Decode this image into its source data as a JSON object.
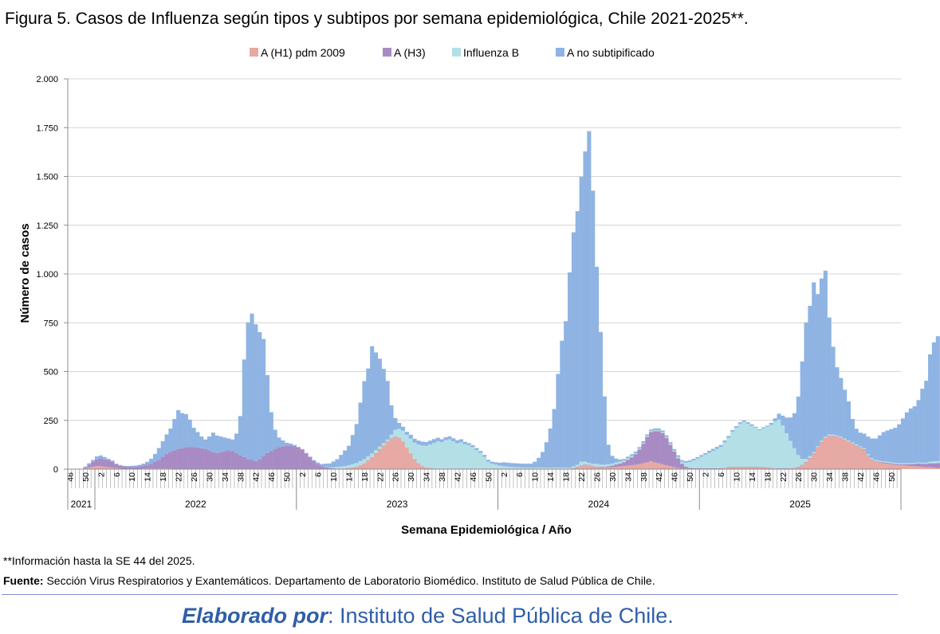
{
  "figure": {
    "title": "Figura 5. Casos de Influenza según tipos y subtipos por semana epidemiológica, Chile 2021-2025**.",
    "note": "**Información hasta la SE 44 del 2025.",
    "source_label": "Fuente:",
    "source_text": " Sección Virus Respiratorios y Exantemáticos. Departamento de Laboratorio Biomédico. Instituto de Salud Pública de Chile.",
    "footer_em": "Elaborado por",
    "footer_rest": ": Instituto de Salud Pública de Chile."
  },
  "chart_data": {
    "type": "bar",
    "stacked": true,
    "ylabel": "Número de casos",
    "xlabel": "Semana Epidemiológica / Año",
    "ylim": [
      0,
      2000
    ],
    "yticks": [
      0,
      250,
      500,
      750,
      1000,
      1250,
      1500,
      1750,
      2000
    ],
    "ytick_labels": [
      "0",
      "250",
      "500",
      "750",
      "1.000",
      "1.250",
      "1.500",
      "1.750",
      "2.000"
    ],
    "grid": true,
    "legend_position": "top",
    "xtick_labels": [
      "46",
      "50",
      "2",
      "6",
      "10",
      "14",
      "18",
      "22",
      "26",
      "30",
      "34",
      "38",
      "42",
      "46",
      "50",
      "2",
      "6",
      "10",
      "14",
      "18",
      "22",
      "26",
      "30",
      "34",
      "38",
      "42",
      "46",
      "50",
      "2",
      "6",
      "10",
      "14",
      "18",
      "22",
      "26",
      "30",
      "34",
      "38",
      "42",
      "46",
      "50",
      "2",
      "6",
      "10",
      "14",
      "18",
      "22",
      "26",
      "30",
      "34",
      "38",
      "42",
      "46",
      "50"
    ],
    "year_groups": [
      {
        "label": "2021",
        "start": "2021-46",
        "end": "2021-52"
      },
      {
        "label": "2022",
        "start": "2022-01",
        "end": "2022-52"
      },
      {
        "label": "2023",
        "start": "2023-01",
        "end": "2023-52"
      },
      {
        "label": "2024",
        "start": "2024-01",
        "end": "2024-52"
      },
      {
        "label": "2025",
        "start": "2025-01",
        "end": "2025-52"
      }
    ],
    "x_start": "2021-46",
    "x_end": "2025-52",
    "last_data_week": "2025-44",
    "series": [
      {
        "name": "A (H1) pdm 2009",
        "color": "#e6a9a3",
        "values": [
          0,
          0,
          0,
          0,
          3,
          8,
          12,
          15,
          15,
          12,
          10,
          8,
          5,
          3,
          2,
          2,
          2,
          2,
          2,
          3,
          3,
          3,
          3,
          3,
          3,
          3,
          3,
          2,
          2,
          2,
          2,
          2,
          2,
          2,
          2,
          2,
          2,
          2,
          2,
          2,
          2,
          2,
          2,
          2,
          2,
          2,
          2,
          2,
          2,
          2,
          2,
          2,
          2,
          2,
          2,
          2,
          2,
          1,
          1,
          1,
          1,
          1,
          1,
          1,
          1,
          1,
          1,
          1,
          1,
          1,
          2,
          3,
          5,
          8,
          12,
          20,
          30,
          45,
          60,
          80,
          100,
          120,
          140,
          155,
          165,
          160,
          140,
          110,
          80,
          50,
          30,
          15,
          8,
          5,
          3,
          2,
          2,
          2,
          2,
          2,
          2,
          2,
          2,
          2,
          2,
          2,
          2,
          2,
          2,
          2,
          2,
          2,
          2,
          2,
          2,
          2,
          2,
          2,
          2,
          2,
          2,
          2,
          2,
          2,
          2,
          2,
          2,
          2,
          2,
          2,
          5,
          10,
          15,
          20,
          20,
          15,
          10,
          10,
          10,
          10,
          10,
          12,
          14,
          16,
          18,
          20,
          22,
          25,
          30,
          35,
          40,
          35,
          30,
          25,
          20,
          15,
          10,
          5,
          3,
          3,
          2,
          2,
          2,
          2,
          2,
          2,
          2,
          2,
          2,
          5,
          8,
          10,
          10,
          10,
          10,
          10,
          10,
          10,
          8,
          8,
          6,
          5,
          3,
          2,
          2,
          2,
          3,
          5,
          10,
          20,
          35,
          55,
          80,
          110,
          140,
          160,
          170,
          170,
          165,
          160,
          150,
          140,
          130,
          120,
          110,
          100,
          70,
          50,
          40,
          35,
          30,
          28,
          25,
          22,
          20,
          20,
          18,
          16,
          15,
          14,
          12,
          10,
          10,
          8,
          6,
          5
        ]
      },
      {
        "name": "A (H3)",
        "color": "#a98bc4",
        "values": [
          0,
          0,
          0,
          0,
          5,
          15,
          25,
          35,
          40,
          38,
          35,
          30,
          20,
          15,
          12,
          10,
          10,
          10,
          12,
          15,
          20,
          25,
          35,
          45,
          60,
          75,
          85,
          95,
          100,
          105,
          110,
          112,
          110,
          108,
          105,
          100,
          95,
          85,
          80,
          85,
          90,
          95,
          90,
          80,
          70,
          60,
          50,
          45,
          40,
          50,
          65,
          80,
          90,
          100,
          110,
          115,
          118,
          120,
          118,
          110,
          100,
          80,
          60,
          40,
          25,
          15,
          10,
          5,
          3,
          2,
          1,
          1,
          1,
          1,
          1,
          1,
          1,
          1,
          2,
          2,
          2,
          2,
          2,
          2,
          2,
          2,
          2,
          1,
          1,
          1,
          1,
          1,
          1,
          1,
          1,
          1,
          1,
          1,
          1,
          1,
          1,
          1,
          1,
          1,
          1,
          1,
          1,
          1,
          1,
          1,
          1,
          1,
          1,
          1,
          1,
          1,
          1,
          1,
          1,
          1,
          1,
          1,
          1,
          1,
          1,
          1,
          1,
          1,
          1,
          1,
          1,
          2,
          3,
          3,
          2,
          2,
          2,
          3,
          3,
          5,
          8,
          12,
          15,
          20,
          30,
          40,
          55,
          75,
          100,
          130,
          150,
          160,
          165,
          160,
          140,
          110,
          80,
          50,
          25,
          10,
          5,
          3,
          2,
          2,
          2,
          2,
          2,
          2,
          2,
          2,
          2,
          2,
          2,
          2,
          2,
          2,
          2,
          2,
          2,
          2,
          2,
          2,
          2,
          2,
          2,
          2,
          2,
          2,
          2,
          2,
          2,
          2,
          2,
          2,
          2,
          2,
          2,
          2,
          2,
          2,
          2,
          2,
          2,
          2,
          2,
          2,
          2,
          2,
          2,
          3,
          5,
          5,
          5,
          5,
          5,
          5,
          8,
          10,
          12,
          15,
          15,
          18,
          20,
          22,
          25,
          28,
          30,
          35,
          40,
          50,
          60,
          70,
          75,
          80,
          80
        ]
      },
      {
        "name": "Influenza  B",
        "color": "#b3e0e6",
        "values": [
          0,
          0,
          0,
          0,
          0,
          0,
          0,
          0,
          0,
          0,
          0,
          0,
          0,
          0,
          0,
          0,
          0,
          0,
          0,
          0,
          0,
          0,
          0,
          0,
          0,
          0,
          0,
          0,
          0,
          0,
          0,
          0,
          0,
          0,
          0,
          0,
          0,
          0,
          0,
          0,
          0,
          0,
          0,
          0,
          0,
          0,
          0,
          0,
          0,
          0,
          0,
          0,
          0,
          0,
          0,
          0,
          0,
          0,
          0,
          0,
          0,
          0,
          0,
          0,
          0,
          0,
          2,
          3,
          5,
          8,
          10,
          12,
          14,
          16,
          18,
          20,
          20,
          20,
          18,
          16,
          14,
          12,
          10,
          20,
          35,
          45,
          55,
          65,
          75,
          85,
          95,
          105,
          110,
          120,
          130,
          140,
          135,
          145,
          150,
          140,
          130,
          135,
          125,
          120,
          110,
          95,
          80,
          60,
          35,
          25,
          20,
          15,
          12,
          10,
          8,
          7,
          6,
          5,
          5,
          5,
          5,
          5,
          5,
          5,
          5,
          5,
          5,
          5,
          5,
          5,
          8,
          10,
          20,
          15,
          10,
          10,
          15,
          10,
          10,
          10,
          10,
          10,
          10,
          8,
          8,
          8,
          5,
          5,
          5,
          5,
          5,
          5,
          5,
          5,
          5,
          5,
          5,
          8,
          10,
          20,
          30,
          40,
          50,
          60,
          70,
          80,
          90,
          100,
          110,
          130,
          150,
          180,
          200,
          220,
          230,
          220,
          210,
          200,
          190,
          200,
          210,
          220,
          240,
          250,
          220,
          180,
          140,
          100,
          60,
          30,
          15,
          10,
          5,
          5,
          5,
          5,
          5,
          5,
          5,
          5,
          5,
          5,
          5,
          5,
          5,
          5,
          5,
          5,
          5,
          5,
          5,
          5,
          5,
          5,
          5,
          5,
          5,
          5,
          5,
          5,
          5,
          5,
          8,
          10,
          10,
          15,
          20,
          25,
          30,
          35,
          40,
          45,
          50,
          55,
          60,
          65,
          70,
          75,
          80,
          90,
          80,
          70
        ]
      },
      {
        "name": "A no subtipificado",
        "color": "#8fb4e3",
        "values": [
          0,
          0,
          0,
          0,
          5,
          7,
          10,
          15,
          15,
          12,
          8,
          6,
          3,
          3,
          3,
          4,
          5,
          6,
          8,
          10,
          15,
          25,
          40,
          60,
          80,
          100,
          120,
          160,
          200,
          180,
          170,
          140,
          100,
          80,
          60,
          50,
          70,
          100,
          90,
          80,
          70,
          60,
          60,
          100,
          200,
          500,
          700,
          750,
          700,
          650,
          600,
          400,
          200,
          100,
          50,
          30,
          15,
          10,
          5,
          3,
          2,
          2,
          3,
          5,
          8,
          10,
          15,
          20,
          30,
          40,
          60,
          80,
          100,
          150,
          200,
          300,
          400,
          450,
          550,
          500,
          450,
          380,
          300,
          150,
          60,
          30,
          20,
          15,
          20,
          20,
          20,
          20,
          20,
          20,
          20,
          18,
          15,
          15,
          15,
          15,
          15,
          15,
          12,
          10,
          10,
          10,
          10,
          10,
          10,
          10,
          12,
          15,
          20,
          20,
          20,
          20,
          20,
          20,
          20,
          20,
          30,
          50,
          80,
          130,
          200,
          300,
          480,
          650,
          750,
          1000,
          1200,
          1300,
          1460,
          1590,
          1700,
          1400,
          1010,
          680,
          350,
          100,
          40,
          20,
          10,
          8,
          8,
          8,
          8,
          8,
          8,
          8,
          8,
          8,
          8,
          8,
          8,
          8,
          8,
          8,
          8,
          8,
          8,
          8,
          8,
          8,
          8,
          10,
          10,
          10,
          10,
          10,
          10,
          8,
          8,
          8,
          8,
          8,
          8,
          5,
          5,
          5,
          5,
          10,
          15,
          30,
          50,
          80,
          120,
          180,
          300,
          500,
          700,
          770,
          870,
          780,
          830,
          850,
          600,
          450,
          350,
          300,
          250,
          200,
          120,
          80,
          70,
          75,
          90,
          100,
          110,
          130,
          150,
          160,
          170,
          180,
          200,
          230,
          260,
          280,
          290,
          320,
          380,
          420,
          550,
          610,
          640
        ]
      }
    ]
  }
}
